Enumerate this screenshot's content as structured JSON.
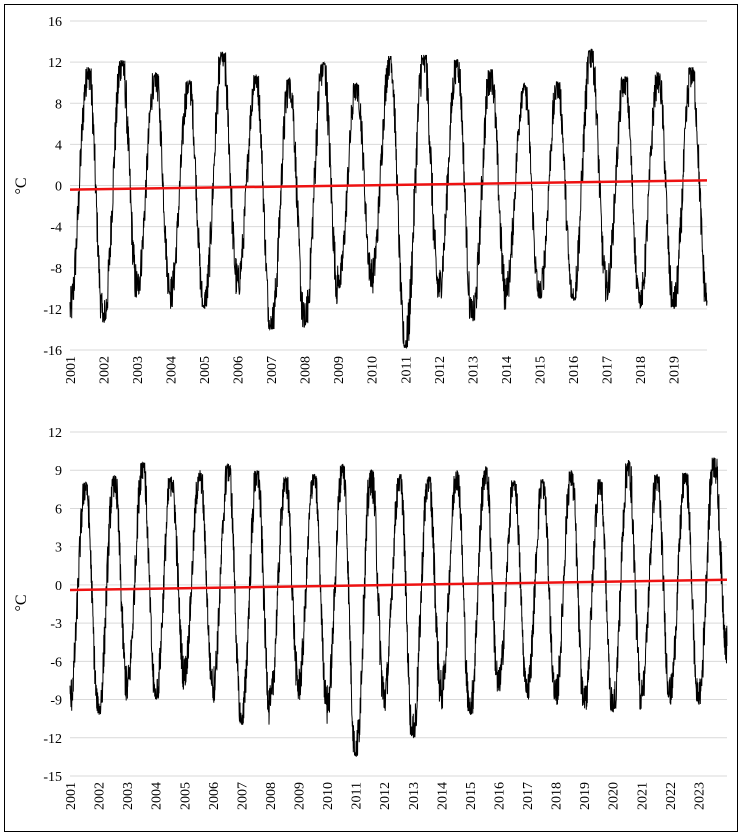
{
  "chart_data": [
    {
      "type": "line",
      "ylabel": "°C",
      "ylim": [
        -16,
        16
      ],
      "yticks": [
        16,
        12,
        8,
        4,
        0,
        -4,
        -8,
        -12,
        -16
      ],
      "xlim": [
        2001,
        2020
      ],
      "xticks": [
        "2001",
        "2002",
        "2003",
        "2004",
        "2005",
        "2006",
        "2007",
        "2008",
        "2009",
        "2010",
        "2011",
        "2012",
        "2013",
        "2014",
        "2015",
        "2016",
        "2017",
        "2018",
        "2019"
      ],
      "grid": true,
      "series": [
        {
          "color": "#000000",
          "style": "daily seasonal oscillation",
          "annual_peaks": [
            11.5,
            12.2,
            11.0,
            10.2,
            13.0,
            10.8,
            10.5,
            12.0,
            10.0,
            12.6,
            12.7,
            12.3,
            11.3,
            10.0,
            10.1,
            13.3,
            10.6,
            11.0,
            11.5
          ],
          "annual_troughs": [
            -12.0,
            -13.3,
            -10.0,
            -10.6,
            -12.0,
            -9.5,
            -14.0,
            -13.6,
            -10.0,
            -9.0,
            -15.8,
            -10.0,
            -13.2,
            -10.5,
            -11.0,
            -11.2,
            -10.0,
            -11.5,
            -12.0
          ],
          "end_value": -11.2
        },
        {
          "color": "#ee1111",
          "style": "linear trend",
          "x": [
            2001,
            2020
          ],
          "y": [
            -0.4,
            0.5
          ]
        }
      ]
    },
    {
      "type": "line",
      "ylabel": "°C",
      "ylim": [
        -15,
        12
      ],
      "yticks": [
        12,
        9,
        6,
        3,
        0,
        -3,
        -6,
        -9,
        -12,
        -15
      ],
      "xlim": [
        2001,
        2024
      ],
      "xticks": [
        "2001",
        "2002",
        "2003",
        "2004",
        "2005",
        "2006",
        "2007",
        "2008",
        "2009",
        "2010",
        "2011",
        "2012",
        "2013",
        "2014",
        "2015",
        "2016",
        "2017",
        "2018",
        "2019",
        "2020",
        "2021",
        "2022",
        "2023"
      ],
      "grid": true,
      "series": [
        {
          "color": "#000000",
          "style": "daily seasonal oscillation",
          "annual_peaks": [
            8.1,
            8.6,
            9.6,
            8.5,
            9.0,
            9.5,
            9.0,
            8.5,
            8.7,
            9.5,
            9.0,
            8.7,
            8.5,
            9.0,
            9.3,
            8.2,
            8.3,
            9.0,
            8.3,
            9.8,
            8.7,
            8.8,
            10.0
          ],
          "annual_troughs": [
            -9.0,
            -10.2,
            -8.0,
            -9.0,
            -7.0,
            -8.0,
            -11.0,
            -9.5,
            -8.0,
            -9.5,
            -13.5,
            -8.8,
            -12.0,
            -8.5,
            -10.2,
            -8.0,
            -8.5,
            -9.0,
            -9.5,
            -10.0,
            -8.7,
            -8.8,
            -9.4
          ],
          "end_value": -4.8
        },
        {
          "color": "#ee1111",
          "style": "linear trend",
          "x": [
            2001,
            2024
          ],
          "y": [
            -0.4,
            0.4
          ]
        }
      ]
    }
  ]
}
